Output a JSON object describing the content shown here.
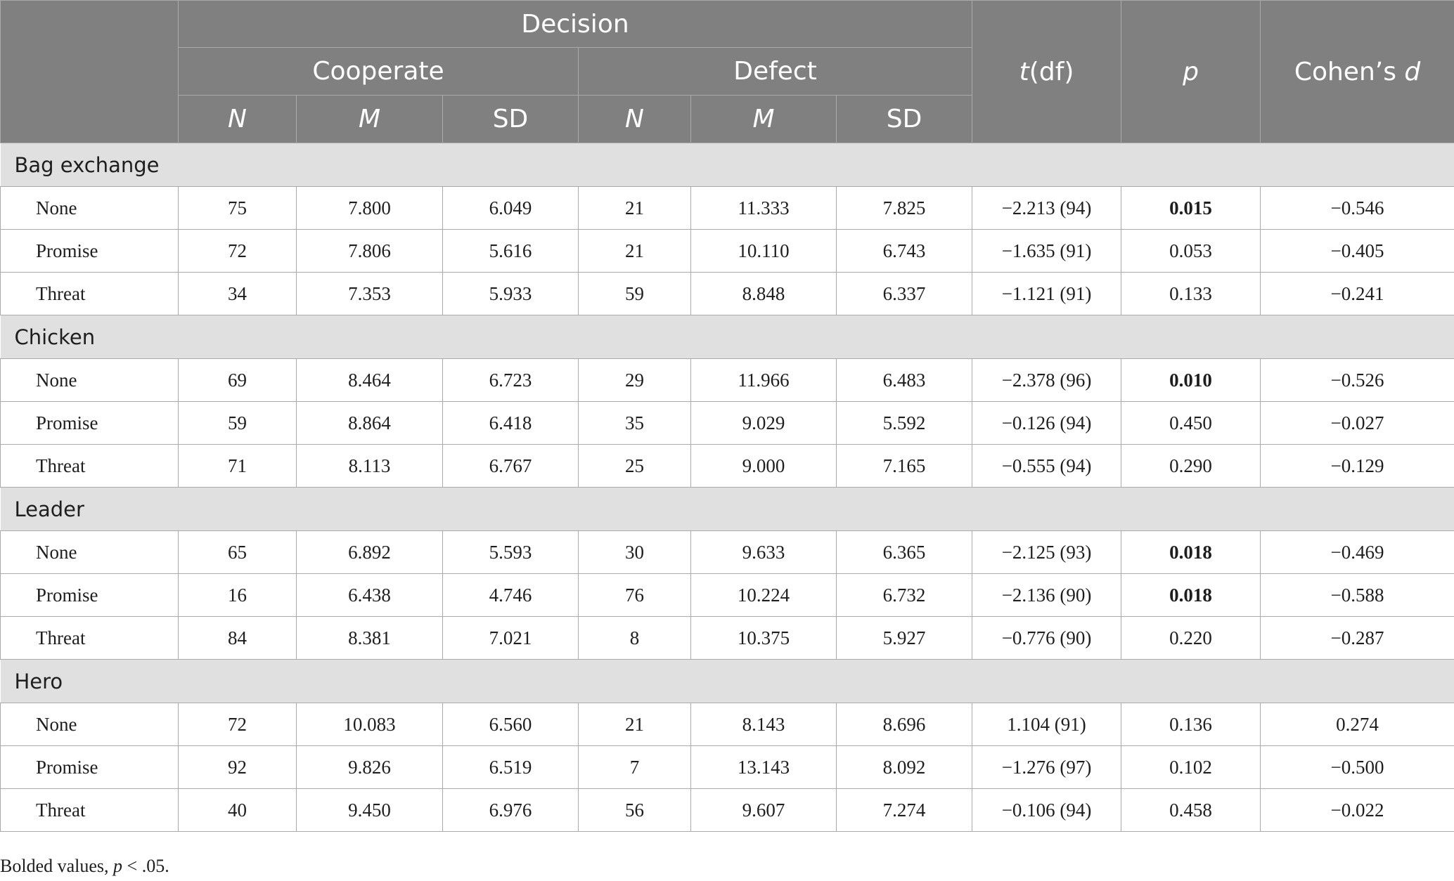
{
  "header": {
    "decision": "Decision",
    "cooperate": "Cooperate",
    "defect": "Defect",
    "t_italic": "t",
    "t_rest": "(df)",
    "p": "p",
    "cohens_prefix": "Cohen’s ",
    "cohens_italic": "d",
    "sub": {
      "n": "N",
      "m": "M",
      "sd": "SD"
    }
  },
  "groups": [
    {
      "name": "Bag exchange",
      "rows": [
        {
          "label": "None",
          "coop_n": "75",
          "coop_m": "7.800",
          "coop_sd": "6.049",
          "def_n": "21",
          "def_m": "11.333",
          "def_sd": "7.825",
          "t": "−2.213 (94)",
          "p": "0.015",
          "d": "−0.546"
        },
        {
          "label": "Promise",
          "coop_n": "72",
          "coop_m": "7.806",
          "coop_sd": "5.616",
          "def_n": "21",
          "def_m": "10.110",
          "def_sd": "6.743",
          "t": "−1.635 (91)",
          "p": "0.053",
          "d": "−0.405"
        },
        {
          "label": "Threat",
          "coop_n": "34",
          "coop_m": "7.353",
          "coop_sd": "5.933",
          "def_n": "59",
          "def_m": "8.848",
          "def_sd": "6.337",
          "t": "−1.121 (91)",
          "p": "0.133",
          "d": "−0.241"
        }
      ]
    },
    {
      "name": "Chicken",
      "rows": [
        {
          "label": "None",
          "coop_n": "69",
          "coop_m": "8.464",
          "coop_sd": "6.723",
          "def_n": "29",
          "def_m": "11.966",
          "def_sd": "6.483",
          "t": "−2.378 (96)",
          "p": "0.010",
          "d": "−0.526"
        },
        {
          "label": "Promise",
          "coop_n": "59",
          "coop_m": "8.864",
          "coop_sd": "6.418",
          "def_n": "35",
          "def_m": "9.029",
          "def_sd": "5.592",
          "t": "−0.126 (94)",
          "p": "0.450",
          "d": "−0.027"
        },
        {
          "label": "Threat",
          "coop_n": "71",
          "coop_m": "8.113",
          "coop_sd": "6.767",
          "def_n": "25",
          "def_m": "9.000",
          "def_sd": "7.165",
          "t": "−0.555 (94)",
          "p": "0.290",
          "d": "−0.129"
        }
      ]
    },
    {
      "name": "Leader",
      "rows": [
        {
          "label": "None",
          "coop_n": "65",
          "coop_m": "6.892",
          "coop_sd": "5.593",
          "def_n": "30",
          "def_m": "9.633",
          "def_sd": "6.365",
          "t": "−2.125 (93)",
          "p": "0.018",
          "d": "−0.469"
        },
        {
          "label": "Promise",
          "coop_n": "16",
          "coop_m": "6.438",
          "coop_sd": "4.746",
          "def_n": "76",
          "def_m": "10.224",
          "def_sd": "6.732",
          "t": "−2.136 (90)",
          "p": "0.018",
          "d": "−0.588"
        },
        {
          "label": "Threat",
          "coop_n": "84",
          "coop_m": "8.381",
          "coop_sd": "7.021",
          "def_n": "8",
          "def_m": "10.375",
          "def_sd": "5.927",
          "t": "−0.776 (90)",
          "p": "0.220",
          "d": "−0.287"
        }
      ]
    },
    {
      "name": "Hero",
      "rows": [
        {
          "label": "None",
          "coop_n": "72",
          "coop_m": "10.083",
          "coop_sd": "6.560",
          "def_n": "21",
          "def_m": "8.143",
          "def_sd": "8.696",
          "t": "1.104 (91)",
          "p": "0.136",
          "d": "0.274"
        },
        {
          "label": "Promise",
          "coop_n": "92",
          "coop_m": "9.826",
          "coop_sd": "6.519",
          "def_n": "7",
          "def_m": "13.143",
          "def_sd": "8.092",
          "t": "−1.276 (97)",
          "p": "0.102",
          "d": "−0.500"
        },
        {
          "label": "Threat",
          "coop_n": "40",
          "coop_m": "9.450",
          "coop_sd": "6.976",
          "def_n": "56",
          "def_m": "9.607",
          "def_sd": "7.274",
          "t": "−0.106 (94)",
          "p": "0.458",
          "d": "−0.022"
        }
      ]
    }
  ],
  "bold_p_values": [
    "0.015",
    "0.010",
    "0.018"
  ],
  "note": {
    "prefix": "Bolded values, ",
    "p_italic": "p",
    "suffix": " < .05."
  },
  "colors": {
    "header_bg": "#7f807f",
    "group_bg": "#e1e0e1",
    "grid": "#a9aaa9"
  }
}
